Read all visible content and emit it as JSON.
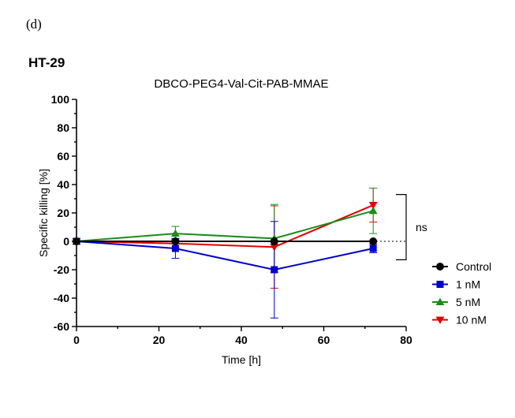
{
  "panel_label": "(d)",
  "cell_line": "HT-29",
  "chart_data": {
    "type": "line",
    "title": "DBCO-PEG4-Val-Cit-PAB-MMAE",
    "xlabel": "Time [h]",
    "ylabel": "Specific killing [%]",
    "xlim": [
      0,
      80
    ],
    "ylim": [
      -60,
      100
    ],
    "x_ticks": [
      "0",
      "20",
      "40",
      "60",
      "80"
    ],
    "y_ticks": [
      "-60",
      "-40",
      "-20",
      "0",
      "20",
      "40",
      "60",
      "80",
      "100"
    ],
    "x": [
      0,
      24,
      48,
      72
    ],
    "zero_line": "dotted",
    "annotation": "ns",
    "legend_position": "right",
    "series": [
      {
        "name": "Control",
        "color": "#000000",
        "marker": "circle",
        "values": [
          0,
          0,
          0,
          0
        ],
        "errors": [
          0,
          0,
          0,
          0
        ]
      },
      {
        "name": "1 nM",
        "color": "#0000cc",
        "marker": "square",
        "values": [
          0,
          -5,
          -20,
          -5
        ],
        "errors": [
          0,
          7,
          34,
          3
        ]
      },
      {
        "name": "5 nM",
        "color": "#1a8c1a",
        "marker": "triangle-up",
        "values": [
          0,
          5.5,
          2,
          21.5
        ],
        "errors": [
          0,
          5,
          24,
          16
        ]
      },
      {
        "name": "10 nM",
        "color": "#e60000",
        "marker": "triangle-down",
        "values": [
          0,
          -1.5,
          -4,
          25.5
        ],
        "errors": [
          0,
          3,
          29,
          12
        ]
      }
    ]
  }
}
